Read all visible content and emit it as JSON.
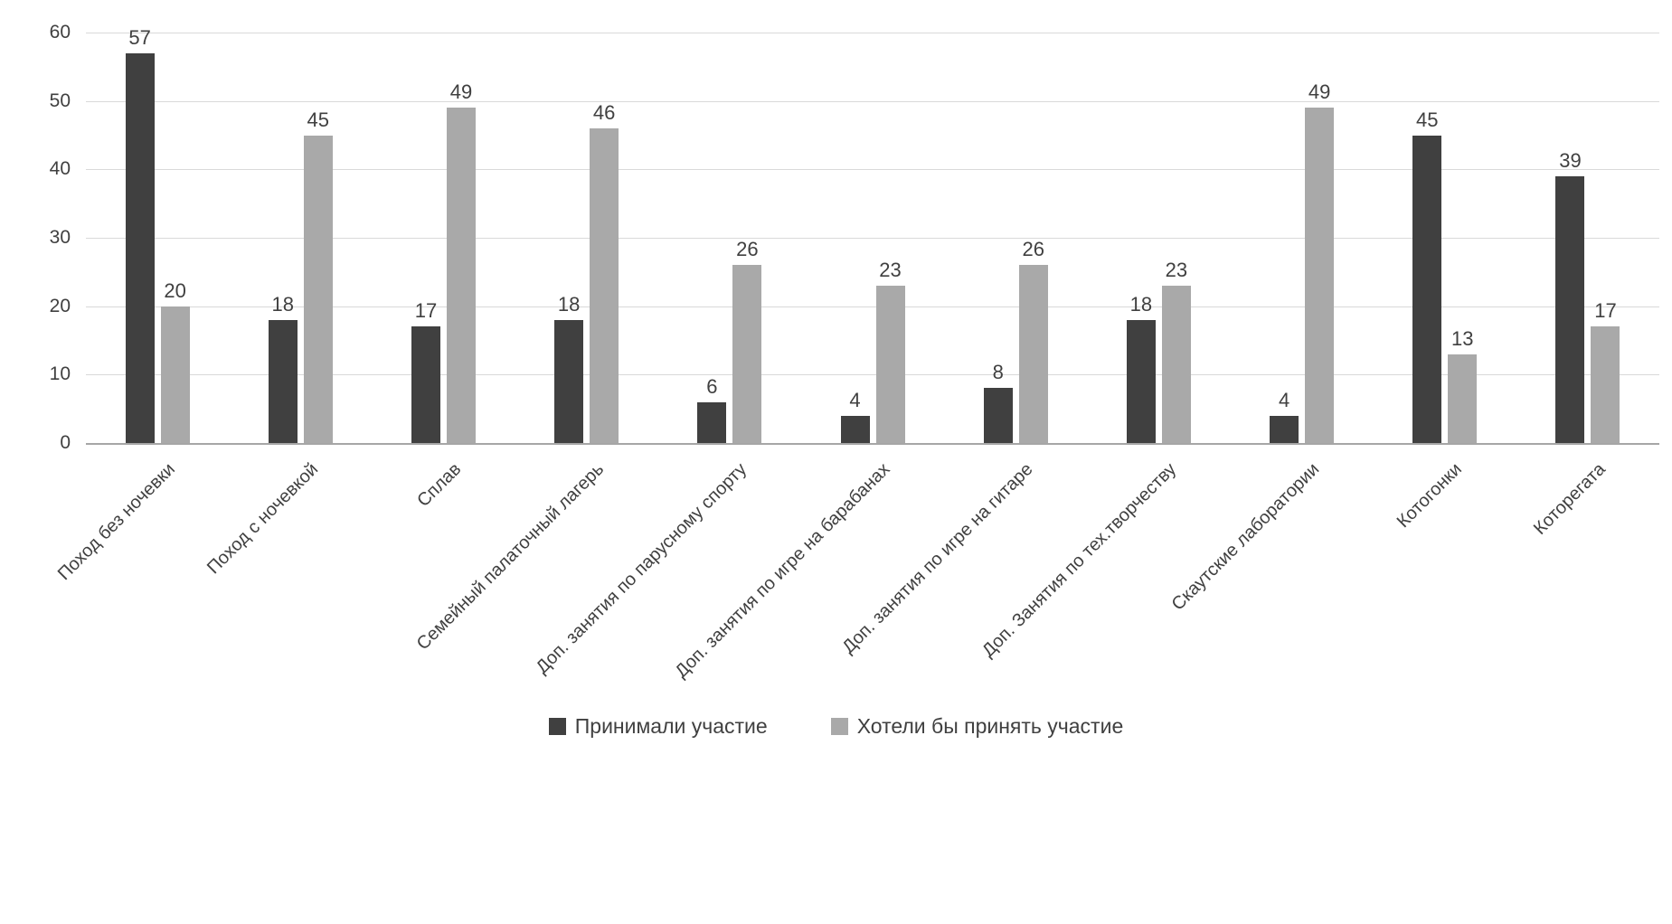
{
  "chart_data": {
    "type": "bar",
    "categories": [
      "Поход без ночевки",
      "Поход с ночевкой",
      "Сплав",
      "Семейный палаточный лагерь",
      "Доп. занятия по парусному спорту",
      "Доп. занятия по игре на барабанах",
      "Доп. занятия по игре на гитаре",
      "Доп. Занятия по тех.творчеству",
      "Скаутские лаборатории",
      "Котогонки",
      "Которегата"
    ],
    "series": [
      {
        "name": "Принимали участие",
        "color": "#404040",
        "values": [
          57,
          18,
          17,
          18,
          6,
          4,
          8,
          18,
          4,
          45,
          39
        ]
      },
      {
        "name": "Хотели бы принять участие",
        "color": "#a9a9a9",
        "values": [
          20,
          45,
          49,
          46,
          26,
          23,
          26,
          23,
          49,
          13,
          17
        ]
      }
    ],
    "title": "",
    "xlabel": "",
    "ylabel": "",
    "ylim": [
      0,
      60
    ],
    "yticks": [
      0,
      10,
      20,
      30,
      40,
      50,
      60
    ],
    "grid": true,
    "legend_position": "bottom",
    "colors": {
      "gridline": "#d9d9d9",
      "axis_line": "#a6a6a6",
      "text": "#404040"
    }
  }
}
